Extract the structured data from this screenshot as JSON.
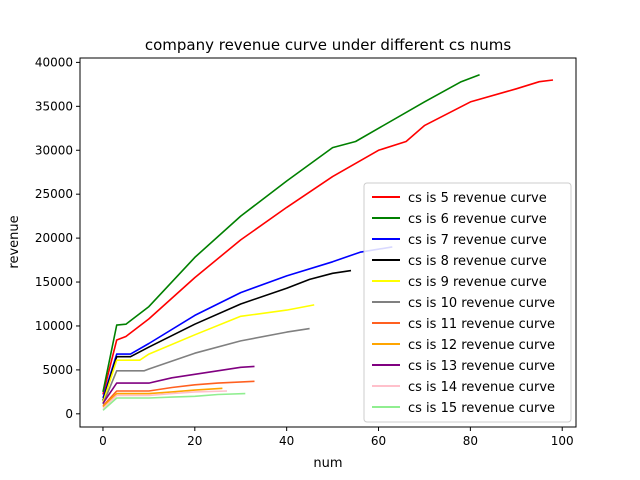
{
  "chart_data": {
    "type": "line",
    "title": "company revenue curve under different cs nums",
    "xlabel": "num",
    "ylabel": "revenue",
    "xlim": [
      -5,
      103
    ],
    "ylim": [
      -1500,
      40500
    ],
    "xticks": [
      0,
      20,
      40,
      60,
      80,
      100
    ],
    "yticks": [
      0,
      5000,
      10000,
      15000,
      20000,
      25000,
      30000,
      35000,
      40000
    ],
    "grid": false,
    "legend_position": "lower-right",
    "series": [
      {
        "name": "cs is 5 revenue curve",
        "color": "#ff0000",
        "x": [
          0,
          3,
          5,
          10,
          20,
          30,
          40,
          50,
          60,
          66,
          70,
          80,
          90,
          95,
          98
        ],
        "y": [
          2200,
          8400,
          8800,
          10800,
          15500,
          19800,
          23500,
          27000,
          30000,
          31000,
          32800,
          35500,
          37000,
          37800,
          38000
        ]
      },
      {
        "name": "cs is 6 revenue curve",
        "color": "#008000",
        "x": [
          0,
          3,
          5,
          10,
          20,
          30,
          40,
          50,
          55,
          60,
          70,
          78,
          82
        ],
        "y": [
          2500,
          10100,
          10200,
          12200,
          17800,
          22500,
          26500,
          30300,
          31000,
          32500,
          35500,
          37800,
          38600
        ]
      },
      {
        "name": "cs is 7 revenue curve",
        "color": "#0000ff",
        "x": [
          0,
          3,
          6,
          10,
          20,
          30,
          40,
          50,
          56,
          63
        ],
        "y": [
          1800,
          6800,
          6800,
          8000,
          11200,
          13800,
          15700,
          17300,
          18400,
          19000
        ]
      },
      {
        "name": "cs is 8 revenue curve",
        "color": "#000000",
        "x": [
          0,
          3,
          6,
          10,
          20,
          30,
          40,
          45,
          50,
          54
        ],
        "y": [
          1500,
          6500,
          6500,
          7600,
          10200,
          12500,
          14300,
          15300,
          16000,
          16300
        ]
      },
      {
        "name": "cs is 9 revenue curve",
        "color": "#ffff00",
        "x": [
          0,
          3,
          8,
          10,
          20,
          30,
          40,
          46
        ],
        "y": [
          1300,
          6100,
          6100,
          6800,
          9000,
          11100,
          11800,
          12400
        ]
      },
      {
        "name": "cs is 10 revenue curve",
        "color": "#808080",
        "x": [
          0,
          3,
          9,
          10,
          20,
          30,
          40,
          45
        ],
        "y": [
          1100,
          4900,
          4900,
          5100,
          6900,
          8300,
          9300,
          9700
        ]
      },
      {
        "name": "cs is 11 revenue curve",
        "color": "#ff6020",
        "x": [
          0,
          3,
          10,
          15,
          20,
          25,
          33
        ],
        "y": [
          900,
          2600,
          2600,
          3000,
          3300,
          3500,
          3700
        ]
      },
      {
        "name": "cs is 12 revenue curve",
        "color": "#ffa500",
        "x": [
          0,
          3,
          10,
          15,
          20,
          26
        ],
        "y": [
          800,
          2300,
          2300,
          2500,
          2700,
          2900
        ]
      },
      {
        "name": "cs is 13 revenue curve",
        "color": "#800080",
        "x": [
          0,
          3,
          10,
          15,
          20,
          25,
          30,
          33
        ],
        "y": [
          1200,
          3500,
          3500,
          4100,
          4500,
          4900,
          5300,
          5400
        ]
      },
      {
        "name": "cs is 14 revenue curve",
        "color": "#ffc0cb",
        "x": [
          0,
          3,
          10,
          15,
          20,
          27
        ],
        "y": [
          600,
          2100,
          2100,
          2300,
          2500,
          2600
        ]
      },
      {
        "name": "cs is 15 revenue curve",
        "color": "#90ee90",
        "x": [
          0,
          3,
          10,
          15,
          20,
          25,
          31
        ],
        "y": [
          400,
          1800,
          1800,
          1900,
          2000,
          2200,
          2300
        ]
      }
    ]
  }
}
